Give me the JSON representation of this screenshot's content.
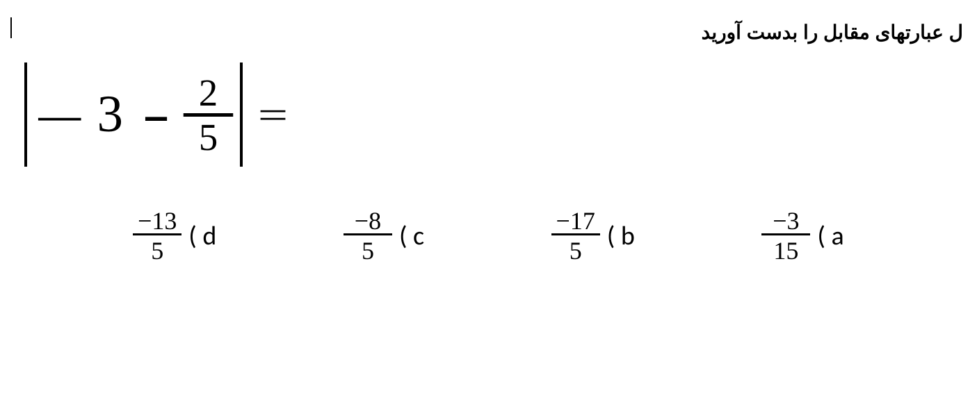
{
  "header": {
    "persian_text": "ل عبارتهای مقابل را بدست آورید"
  },
  "expression": {
    "left_minus": "–",
    "whole": "3",
    "op_minus": "-",
    "frac_num": "2",
    "frac_den": "5",
    "equals": "="
  },
  "options": {
    "d": {
      "numerator": "−13",
      "denominator": "5",
      "label": "( d"
    },
    "c": {
      "numerator": "−8",
      "denominator": "5",
      "label": "( c"
    },
    "b": {
      "numerator": "−17",
      "denominator": "5",
      "label": "( b"
    },
    "a": {
      "numerator": "−3",
      "denominator": "15",
      "label": "( a"
    }
  },
  "style": {
    "background_color": "#ffffff",
    "text_color": "#000000",
    "header_fontsize": 28,
    "expression_fontsize": 75,
    "fraction_fontsize": 55,
    "option_fontsize": 36,
    "option_label_fontsize": 38
  }
}
